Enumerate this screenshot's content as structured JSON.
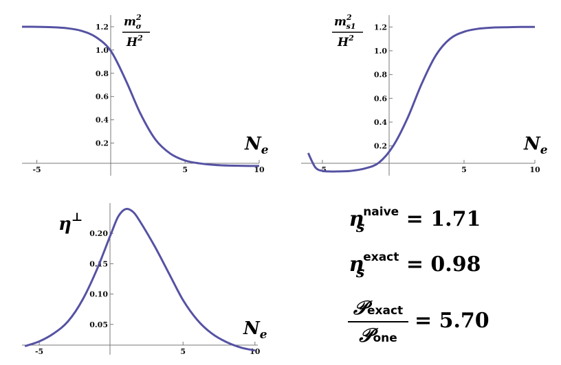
{
  "chart_data": [
    {
      "type": "line",
      "x": [
        -6,
        -5,
        -4,
        -3,
        -2,
        -1,
        0,
        1,
        2,
        3,
        4,
        5,
        6,
        7,
        8,
        9,
        10
      ],
      "y": [
        1.2,
        1.199,
        1.196,
        1.188,
        1.165,
        1.11,
        0.99,
        0.74,
        0.45,
        0.23,
        0.11,
        0.05,
        0.025,
        0.012,
        0.006,
        0.004,
        0.003
      ],
      "xticks": [
        "-5",
        "5",
        "10"
      ],
      "yticks": [
        "0.2",
        "0.4",
        "0.6",
        "0.8",
        "1.0",
        "1.2"
      ],
      "xlim": [
        -6,
        10
      ],
      "ylim": [
        -0.08,
        1.3
      ],
      "xlabel": "N",
      "xlabel_sub": "e",
      "ylabel_num": "m",
      "ylabel_num_sup": "2",
      "ylabel_num_sub": "σ",
      "ylabel_den": "H",
      "ylabel_den_sup": "2",
      "color": "#5552a3"
    },
    {
      "type": "line",
      "x": [
        -6,
        -5.5,
        -5,
        -4.5,
        -4,
        -3,
        -2,
        -1,
        0,
        1,
        2,
        3,
        4,
        5,
        6,
        7,
        8,
        9,
        10
      ],
      "y": [
        0.14,
        0.02,
        -0.01,
        -0.015,
        -0.015,
        -0.01,
        0.01,
        0.06,
        0.2,
        0.43,
        0.72,
        0.96,
        1.1,
        1.16,
        1.185,
        1.195,
        1.198,
        1.2,
        1.2
      ],
      "xticks": [
        "-5",
        "5",
        "10"
      ],
      "yticks": [
        "0.2",
        "0.4",
        "0.6",
        "0.8",
        "1.0",
        "1.2"
      ],
      "xlim": [
        -6.5,
        10
      ],
      "ylim": [
        -0.05,
        1.3
      ],
      "xlabel": "N",
      "xlabel_sub": "e",
      "ylabel_num": "m",
      "ylabel_num_sup": "2",
      "ylabel_num_sub": "s1",
      "ylabel_den": "H",
      "ylabel_den_sup": "2",
      "color": "#5552a3"
    },
    {
      "type": "line",
      "x": [
        -6,
        -5,
        -4,
        -3,
        -2,
        -1,
        0,
        0.5,
        1,
        1.5,
        2,
        3,
        4,
        5,
        6,
        7,
        8,
        9,
        10
      ],
      "y": [
        0.014,
        0.022,
        0.035,
        0.055,
        0.09,
        0.14,
        0.2,
        0.228,
        0.24,
        0.236,
        0.22,
        0.18,
        0.135,
        0.09,
        0.057,
        0.035,
        0.021,
        0.012,
        0.007
      ],
      "xticks": [
        "-5",
        "5",
        "10"
      ],
      "yticks": [
        "0.05",
        "0.10",
        "0.15",
        "0.20"
      ],
      "xlim": [
        -6.2,
        10.2
      ],
      "ylim": [
        0,
        0.25
      ],
      "xlabel": "N",
      "xlabel_sub": "e",
      "ylabel": "η",
      "ylabel_sup": "⊥",
      "color": "#5552a3"
    }
  ],
  "results": {
    "naive": {
      "base": "n",
      "sub": "s",
      "sup": "naive",
      "value": "= 1.71"
    },
    "exact": {
      "base": "n",
      "sub": "s",
      "sup": "exact",
      "value": "= 0.98"
    },
    "ratio": {
      "num_base": "𝒫",
      "num_sub": "exact",
      "den_base": "𝒫",
      "den_sub": "one",
      "value": "= 5.70"
    }
  }
}
